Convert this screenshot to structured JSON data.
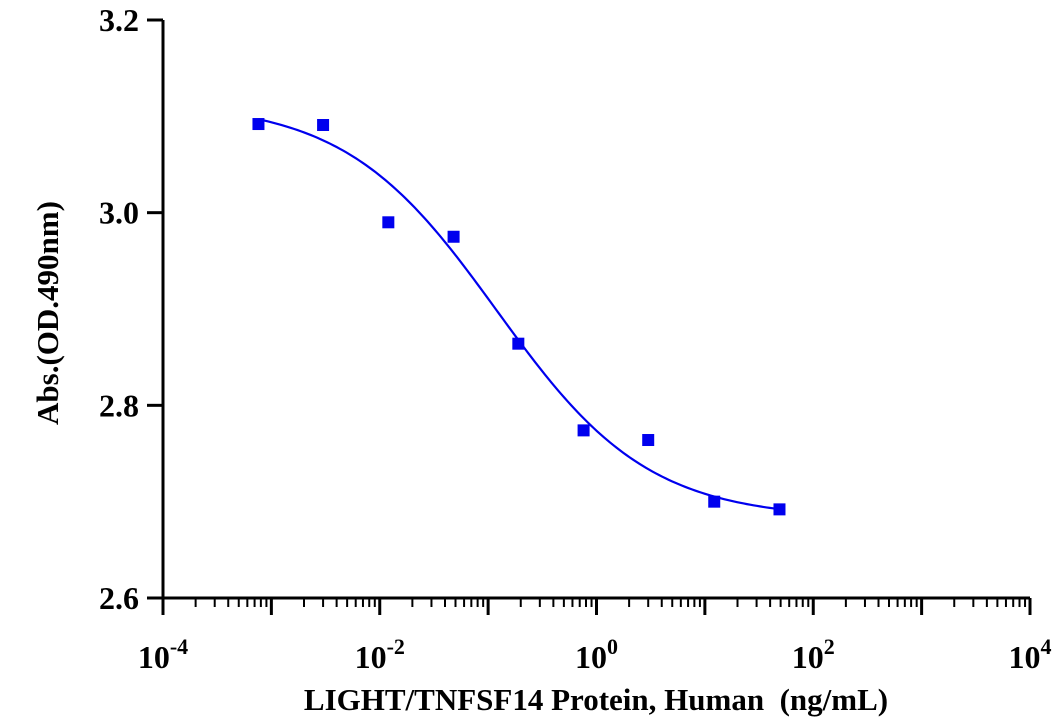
{
  "chart_data": {
    "type": "scatter",
    "title": "",
    "xlabel": "LIGHT/TNFSF14 Protein, Human  (ng/mL)",
    "ylabel": "Abs.(OD.490nm)",
    "x_scale": "log10",
    "xlim": [
      0.0001,
      10000
    ],
    "ylim": [
      2.6,
      3.2
    ],
    "x_ticks": [
      {
        "base": "10",
        "exp": "-4",
        "value": 0.0001
      },
      {
        "base": "10",
        "exp": "-2",
        "value": 0.01
      },
      {
        "base": "10",
        "exp": "0",
        "value": 1
      },
      {
        "base": "10",
        "exp": "2",
        "value": 100
      },
      {
        "base": "10",
        "exp": "4",
        "value": 10000
      }
    ],
    "y_ticks": [
      {
        "label": "2.6",
        "value": 2.6
      },
      {
        "label": "2.8",
        "value": 2.8
      },
      {
        "label": "3.0",
        "value": 3.0
      },
      {
        "label": "3.2",
        "value": 3.2
      }
    ],
    "grid": false,
    "legend": "none",
    "series": [
      {
        "marker": "square",
        "color": "#0000ee",
        "x": [
          0.00076,
          0.003,
          0.012,
          0.048,
          0.19,
          0.76,
          3.0,
          12.2,
          48.8
        ],
        "y": [
          3.092,
          3.091,
          2.99,
          2.975,
          2.864,
          2.774,
          2.764,
          2.7,
          2.692
        ]
      }
    ],
    "fit_curve": {
      "model": "4PL",
      "color": "#0000ee",
      "top": 3.115,
      "bottom": 2.682,
      "ec50": 0.12,
      "hill": 0.62,
      "x_range": [
        0.00076,
        48.8
      ]
    }
  }
}
